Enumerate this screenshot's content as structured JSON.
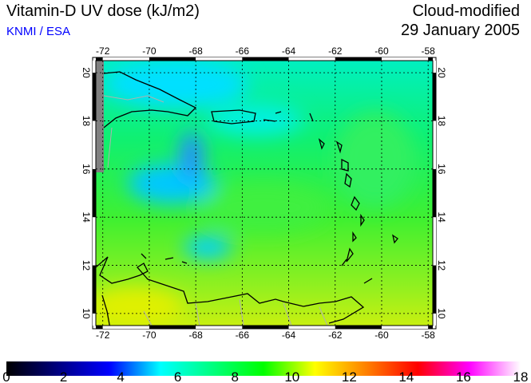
{
  "header": {
    "title": "Vitamin-D UV dose (kJ/m2)",
    "credit": "KNMI / ESA",
    "mode": "Cloud-modified",
    "date": "29 January 2005"
  },
  "map": {
    "lon_ticks": [
      -72,
      -70,
      -68,
      -66,
      -64,
      -62,
      -60,
      -58
    ],
    "lat_ticks": [
      20,
      18,
      16,
      14,
      12,
      10
    ],
    "lon_range": [
      -72.3,
      -57.8
    ],
    "lat_range": [
      9.5,
      20.5
    ]
  },
  "colorbar": {
    "ticks": [
      0,
      2,
      4,
      6,
      8,
      10,
      12,
      14,
      16,
      18
    ],
    "range": [
      0,
      18
    ],
    "colors": [
      "#000000",
      "#000080",
      "#0000ff",
      "#00ffff",
      "#00ff80",
      "#00ff00",
      "#ffff00",
      "#ff8000",
      "#ff0000",
      "#ff00ff",
      "#ffffff"
    ]
  }
}
